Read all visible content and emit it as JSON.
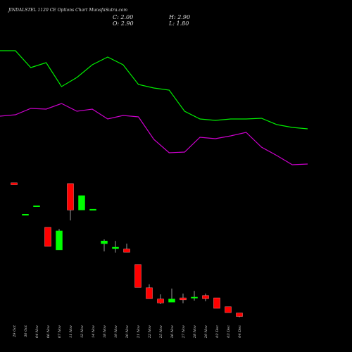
{
  "chart_data": {
    "type": "candlestick",
    "title": "JINDALSTEL 1120 CE Options Chart MunafaSutra.com",
    "header": {
      "close": "C: 2.00",
      "high": "H: 2.90",
      "open": "O: 2.90",
      "low": "L: 1.80"
    },
    "categories": [
      "29 Oct",
      "30 Oct",
      "04 Nov",
      "06 Nov",
      "07 Nov",
      "11 Nov",
      "12 Nov",
      "14 Nov",
      "18 Nov",
      "19 Nov",
      "20 Nov",
      "21 Nov",
      "22 Nov",
      "25 Nov",
      "26 Nov",
      "27 Nov",
      "28 Nov",
      "29 Nov",
      "02 Dec",
      "03 Dec",
      "04 Dec"
    ],
    "open": [
      36.5,
      28.4,
      30.6,
      25.0,
      19.2,
      36.3,
      29.5,
      29.7,
      20.8,
      19.5,
      19.4,
      15.4,
      9.4,
      6.5,
      5.7,
      6.8,
      7.0,
      7.4,
      6.8,
      4.5,
      2.9
    ],
    "high": [
      36.5,
      28.4,
      30.6,
      25.0,
      24.6,
      36.3,
      33.2,
      29.7,
      21.9,
      21.5,
      20.8,
      15.4,
      10.3,
      7.7,
      9.2,
      7.9,
      8.6,
      7.9,
      6.8,
      4.5,
      2.9
    ],
    "low": [
      36.0,
      28.4,
      30.6,
      20.1,
      19.2,
      26.8,
      29.5,
      29.7,
      18.8,
      18.5,
      18.6,
      9.5,
      6.6,
      5.2,
      5.7,
      5.4,
      6.1,
      5.9,
      4.1,
      3.0,
      1.8
    ],
    "close": [
      36.0,
      28.4,
      30.6,
      20.1,
      24.1,
      29.5,
      33.2,
      29.7,
      21.5,
      19.9,
      18.6,
      9.5,
      6.6,
      5.5,
      6.5,
      6.3,
      7.0,
      6.6,
      4.1,
      3.0,
      2.0
    ],
    "up_color": "#00ff00",
    "down_color": "#ff0000",
    "ylim": [
      1,
      37
    ],
    "lines": {
      "ylim": [
        0,
        100
      ],
      "series": [
        {
          "color": "#00ee00",
          "values": [
            89,
            89,
            77,
            80.5,
            63.5,
            70,
            79,
            84.5,
            79,
            65,
            62.5,
            61,
            46,
            40.5,
            39.5,
            40.5,
            40.5,
            41,
            36.5,
            34.5,
            33.5
          ]
        },
        {
          "color": "#cc00cc",
          "values": [
            42.5,
            43.5,
            48,
            47.5,
            51.5,
            46,
            47.5,
            40.5,
            43,
            42,
            26,
            16.5,
            17,
            27.5,
            26.5,
            28.5,
            31,
            20.5,
            14.5,
            8,
            8.5
          ]
        }
      ]
    }
  }
}
